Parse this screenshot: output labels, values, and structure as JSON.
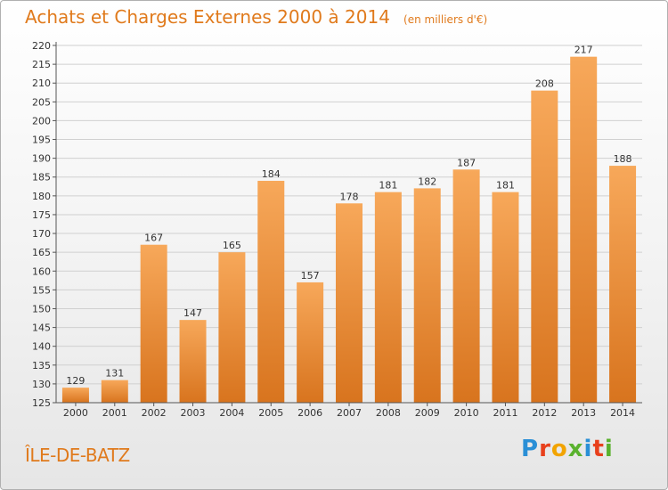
{
  "chart_data": {
    "type": "bar",
    "title": "Achats et Charges Externes 2000 à 2014",
    "unit": "(en milliers d'€)",
    "categories": [
      "2000",
      "2001",
      "2002",
      "2003",
      "2004",
      "2005",
      "2006",
      "2007",
      "2008",
      "2009",
      "2010",
      "2011",
      "2012",
      "2013",
      "2014"
    ],
    "values": [
      129,
      131,
      167,
      147,
      165,
      184,
      157,
      178,
      181,
      182,
      187,
      181,
      208,
      217,
      188
    ],
    "ylim": [
      125,
      220
    ],
    "ytick_step": 5,
    "grid": true,
    "xlabel": "",
    "ylabel": ""
  },
  "commune": "ÎLE-DE-BATZ",
  "logo": {
    "text": "Proxiti"
  },
  "colors": {
    "bar_light": "#f7a85a",
    "bar_dark": "#d8741e",
    "accent": "#e07a1c",
    "grid": "#d0d0d0",
    "axis": "#555555",
    "text": "#333333"
  }
}
